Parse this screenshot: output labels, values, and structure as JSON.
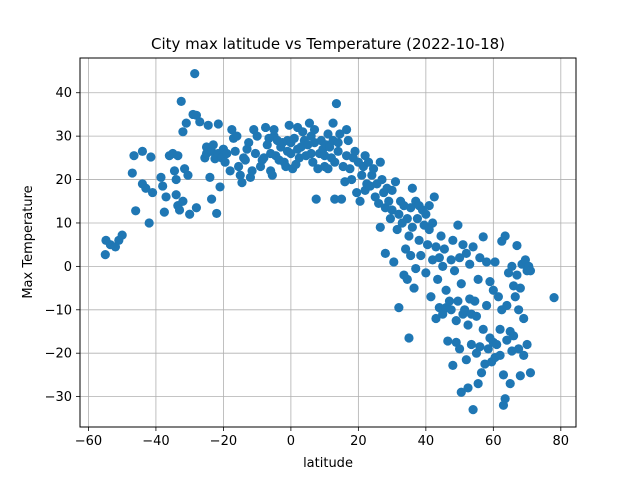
{
  "chart_data": {
    "type": "scatter",
    "title": "City max latitude vs Temperature (2022-10-18)",
    "xlabel": "latitude",
    "ylabel": "Max Temperature",
    "xlim": [
      -62.5,
      84.5
    ],
    "ylim": [
      -37,
      48
    ],
    "xticks": [
      -60,
      -40,
      -20,
      0,
      20,
      40,
      60,
      80
    ],
    "yticks": [
      -30,
      -20,
      -10,
      0,
      10,
      20,
      30,
      40
    ],
    "grid": true,
    "marker_color": "#1f77b4",
    "points": [
      [
        -55,
        2.7
      ],
      [
        -54.8,
        6
      ],
      [
        -53.5,
        5
      ],
      [
        -52,
        4.5
      ],
      [
        -51,
        6
      ],
      [
        -50,
        7.2
      ],
      [
        -47,
        21.5
      ],
      [
        -46.5,
        25.5
      ],
      [
        -46,
        12.8
      ],
      [
        -44,
        26.5
      ],
      [
        -44,
        19
      ],
      [
        -43,
        18
      ],
      [
        -42,
        10
      ],
      [
        -41.5,
        25.2
      ],
      [
        -41,
        17
      ],
      [
        -38.5,
        20.5
      ],
      [
        -38,
        18.5
      ],
      [
        -37.5,
        12.5
      ],
      [
        -37,
        16
      ],
      [
        -36,
        25.5
      ],
      [
        -35,
        26
      ],
      [
        -34.5,
        22
      ],
      [
        -34,
        20
      ],
      [
        -34,
        16.5
      ],
      [
        -33.5,
        14
      ],
      [
        -33.5,
        25.5
      ],
      [
        -33,
        13
      ],
      [
        -32.5,
        38
      ],
      [
        -32,
        31
      ],
      [
        -32,
        15
      ],
      [
        -31.5,
        22.5
      ],
      [
        -31,
        33
      ],
      [
        -30.5,
        21
      ],
      [
        -30,
        12
      ],
      [
        -29,
        35
      ],
      [
        -28.5,
        44.4
      ],
      [
        -28,
        34.8
      ],
      [
        -28,
        13.5
      ],
      [
        -27,
        33.3
      ],
      [
        -25.5,
        25
      ],
      [
        -25,
        27.5
      ],
      [
        -25,
        26
      ],
      [
        -24.5,
        32.5
      ],
      [
        -24,
        20.5
      ],
      [
        -23.5,
        15.5
      ],
      [
        -23.5,
        26.5
      ],
      [
        -23,
        28
      ],
      [
        -22.5,
        24.8
      ],
      [
        -22,
        12.2
      ],
      [
        -21.5,
        26
      ],
      [
        -21.5,
        32.8
      ],
      [
        -21,
        18.3
      ],
      [
        -20.5,
        25
      ],
      [
        -20,
        27
      ],
      [
        -19.5,
        24
      ],
      [
        -19,
        26
      ],
      [
        -18,
        22
      ],
      [
        -17.5,
        31.5
      ],
      [
        -17,
        29.5
      ],
      [
        -16.5,
        26.5
      ],
      [
        -16,
        30
      ],
      [
        -15.5,
        23
      ],
      [
        -15,
        21
      ],
      [
        -14.5,
        19.3
      ],
      [
        -14,
        25
      ],
      [
        -13.5,
        24.5
      ],
      [
        -13,
        27
      ],
      [
        -12.5,
        28.5
      ],
      [
        -12,
        20.5
      ],
      [
        -11.5,
        22
      ],
      [
        -11,
        31.5
      ],
      [
        -10.5,
        26
      ],
      [
        -10,
        30
      ],
      [
        -9,
        23
      ],
      [
        -8.5,
        24.5
      ],
      [
        -8,
        25
      ],
      [
        -7.5,
        32
      ],
      [
        -7,
        28
      ],
      [
        -6.5,
        29.5
      ],
      [
        -6,
        26
      ],
      [
        -6,
        22
      ],
      [
        -5.5,
        21
      ],
      [
        -5,
        30
      ],
      [
        -5,
        31.5
      ],
      [
        -4.5,
        25.5
      ],
      [
        -4,
        29
      ],
      [
        -3.5,
        24.5
      ],
      [
        -3,
        27.5
      ],
      [
        -2.5,
        28.5
      ],
      [
        -2,
        24
      ],
      [
        -1.5,
        23
      ],
      [
        -1,
        29
      ],
      [
        -1,
        26.5
      ],
      [
        -0.5,
        32.5
      ],
      [
        0,
        28.5
      ],
      [
        0,
        26
      ],
      [
        0.5,
        22.5
      ],
      [
        1,
        29.5
      ],
      [
        1.5,
        23.5
      ],
      [
        2,
        32
      ],
      [
        2,
        27
      ],
      [
        2.5,
        25
      ],
      [
        3,
        27.5
      ],
      [
        3.5,
        31
      ],
      [
        4,
        29
      ],
      [
        4.5,
        25.5
      ],
      [
        5,
        28
      ],
      [
        5.5,
        33
      ],
      [
        6,
        30
      ],
      [
        6,
        26
      ],
      [
        6.5,
        24
      ],
      [
        7,
        28.5
      ],
      [
        7,
        31.5
      ],
      [
        7.5,
        15.5
      ],
      [
        8,
        22.5
      ],
      [
        8.5,
        26
      ],
      [
        9,
        29
      ],
      [
        9.5,
        27
      ],
      [
        10,
        23
      ],
      [
        10,
        25.5
      ],
      [
        10.5,
        28
      ],
      [
        11,
        30.5
      ],
      [
        11,
        22.5
      ],
      [
        11.5,
        27.5
      ],
      [
        12,
        25
      ],
      [
        12.5,
        33
      ],
      [
        12.5,
        29
      ],
      [
        13,
        24
      ],
      [
        13,
        15.5
      ],
      [
        13.5,
        37.5
      ],
      [
        14,
        28.5
      ],
      [
        14,
        26.5
      ],
      [
        14.5,
        30.5
      ],
      [
        15,
        15.5
      ],
      [
        15.5,
        23
      ],
      [
        16,
        19.5
      ],
      [
        16.5,
        31.5
      ],
      [
        16.5,
        25.5
      ],
      [
        17,
        29
      ],
      [
        17.5,
        22.5
      ],
      [
        18,
        20
      ],
      [
        18.5,
        25
      ],
      [
        19,
        26.5
      ],
      [
        19.5,
        17
      ],
      [
        20,
        24
      ],
      [
        20.5,
        15
      ],
      [
        21,
        21
      ],
      [
        21.5,
        23
      ],
      [
        22,
        25.5
      ],
      [
        22,
        17.5
      ],
      [
        22.5,
        19
      ],
      [
        23,
        24
      ],
      [
        23.5,
        18.5
      ],
      [
        24,
        21
      ],
      [
        24.5,
        22.5
      ],
      [
        25,
        16
      ],
      [
        25.5,
        19
      ],
      [
        26,
        14.5
      ],
      [
        26.5,
        24
      ],
      [
        26.5,
        9
      ],
      [
        27,
        20
      ],
      [
        27.5,
        17
      ],
      [
        28,
        13.5
      ],
      [
        28,
        3
      ],
      [
        28.5,
        18
      ],
      [
        29,
        15
      ],
      [
        29.5,
        11
      ],
      [
        30,
        17.5
      ],
      [
        30,
        13
      ],
      [
        30.5,
        1
      ],
      [
        31,
        19.5
      ],
      [
        31.5,
        8.5
      ],
      [
        32,
        12
      ],
      [
        32,
        -9.5
      ],
      [
        32.5,
        15
      ],
      [
        33,
        10
      ],
      [
        33.5,
        14
      ],
      [
        33.5,
        -2
      ],
      [
        34,
        4
      ],
      [
        34.5,
        11
      ],
      [
        34.5,
        -3
      ],
      [
        35,
        7
      ],
      [
        35,
        -16.5
      ],
      [
        35.5,
        13.5
      ],
      [
        35.5,
        2.5
      ],
      [
        36,
        9
      ],
      [
        36,
        18
      ],
      [
        36.5,
        -5
      ],
      [
        37,
        15
      ],
      [
        37,
        -0.5
      ],
      [
        37.5,
        11
      ],
      [
        38,
        6
      ],
      [
        38,
        14
      ],
      [
        38.5,
        2.5
      ],
      [
        39,
        13
      ],
      [
        39.5,
        9.5
      ],
      [
        40,
        12
      ],
      [
        40,
        -1.5
      ],
      [
        40.5,
        5
      ],
      [
        41,
        8.5
      ],
      [
        41,
        14
      ],
      [
        41.5,
        -7
      ],
      [
        42,
        1.5
      ],
      [
        42,
        10
      ],
      [
        42.5,
        16
      ],
      [
        43,
        4.5
      ],
      [
        43,
        -12
      ],
      [
        43.5,
        -3
      ],
      [
        44,
        -9.5
      ],
      [
        44,
        2
      ],
      [
        44.5,
        7
      ],
      [
        45,
        -11
      ],
      [
        45,
        0
      ],
      [
        45.5,
        4
      ],
      [
        46,
        -5.5
      ],
      [
        46,
        -9.5
      ],
      [
        46.5,
        -17.2
      ],
      [
        47,
        -8
      ],
      [
        47.5,
        1.5
      ],
      [
        47.5,
        -10
      ],
      [
        48,
        -22.8
      ],
      [
        48,
        6
      ],
      [
        48.5,
        -1
      ],
      [
        49,
        -17.5
      ],
      [
        49,
        -12.5
      ],
      [
        49.5,
        -8
      ],
      [
        49.5,
        9.5
      ],
      [
        50,
        -19
      ],
      [
        50,
        2
      ],
      [
        50.5,
        -29
      ],
      [
        50.5,
        -4
      ],
      [
        51,
        -11
      ],
      [
        51,
        5
      ],
      [
        51.5,
        -10
      ],
      [
        52,
        -21.5
      ],
      [
        52,
        3
      ],
      [
        52.5,
        -28
      ],
      [
        52.5,
        -13.5
      ],
      [
        53,
        -7.5
      ],
      [
        53,
        0.5
      ],
      [
        53.5,
        -18
      ],
      [
        53.5,
        -11
      ],
      [
        54,
        -33
      ],
      [
        54,
        4.5
      ],
      [
        54.5,
        -8
      ],
      [
        55,
        -11.5
      ],
      [
        55,
        -20
      ],
      [
        55.5,
        -27
      ],
      [
        55.5,
        -3
      ],
      [
        56,
        -18.5
      ],
      [
        56,
        2
      ],
      [
        56.5,
        -24.5
      ],
      [
        57,
        -14.5
      ],
      [
        57,
        6.8
      ],
      [
        57.5,
        -22.5
      ],
      [
        58,
        -9
      ],
      [
        58,
        1
      ],
      [
        58.5,
        -19
      ],
      [
        59,
        -16.5
      ],
      [
        59,
        -3.5
      ],
      [
        59.5,
        -22
      ],
      [
        60,
        -5.5
      ],
      [
        60,
        -17.5
      ],
      [
        60.5,
        -21
      ],
      [
        60.5,
        1
      ],
      [
        61,
        -18
      ],
      [
        61.5,
        -7
      ],
      [
        62,
        -20.5
      ],
      [
        62,
        -14.5
      ],
      [
        62.5,
        -10
      ],
      [
        62.5,
        5.8
      ],
      [
        63,
        -32
      ],
      [
        63,
        -25
      ],
      [
        63.5,
        -30.5
      ],
      [
        63.5,
        7
      ],
      [
        64,
        -9
      ],
      [
        64,
        -17
      ],
      [
        64.5,
        -1.5
      ],
      [
        65,
        -27
      ],
      [
        65,
        -15
      ],
      [
        65.5,
        -19.5
      ],
      [
        65.5,
        0
      ],
      [
        66,
        -4.5
      ],
      [
        66,
        -16
      ],
      [
        66.5,
        -7
      ],
      [
        67,
        -2
      ],
      [
        67,
        4.8
      ],
      [
        67.5,
        -10
      ],
      [
        67.5,
        -19
      ],
      [
        68,
        -25.2
      ],
      [
        68,
        -5
      ],
      [
        68.5,
        0.5
      ],
      [
        69,
        -12
      ],
      [
        69,
        -20.5
      ],
      [
        69.5,
        1.5
      ],
      [
        70,
        -18
      ],
      [
        70,
        -1
      ],
      [
        70.5,
        0
      ],
      [
        71,
        -24.5
      ],
      [
        71,
        -1
      ],
      [
        78,
        -7.2
      ]
    ]
  }
}
